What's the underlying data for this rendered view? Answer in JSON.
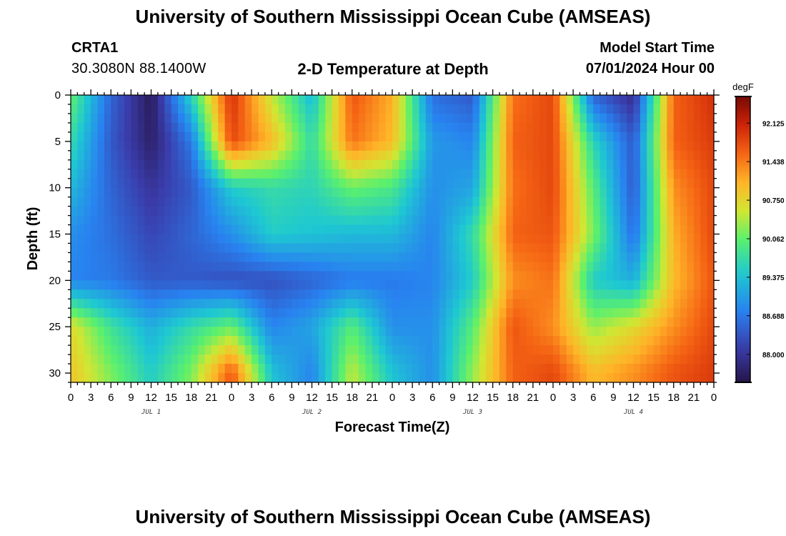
{
  "header": {
    "title_top": "University of Southern Mississippi Ocean Cube (AMSEAS)",
    "title_bottom": "University of Southern Mississippi Ocean Cube (AMSEAS)",
    "station_id": "CRTA1",
    "station_coords": "30.3080N  88.1400W",
    "plot_title": "2-D Temperature at Depth",
    "model_start_label": "Model Start Time",
    "model_start_value": "07/01/2024 Hour 00"
  },
  "chart_data": {
    "type": "heatmap",
    "title": "2-D Temperature at Depth",
    "xlabel": "Forecast Time(Z)",
    "ylabel": "Depth (ft)",
    "x_range_hours": [
      0,
      96
    ],
    "y_range_ft": [
      0,
      31
    ],
    "y_inverted": true,
    "x_tick_labels": [
      "0",
      "3",
      "6",
      "9",
      "12",
      "15",
      "18",
      "21",
      "0",
      "3",
      "6",
      "9",
      "12",
      "15",
      "18",
      "21",
      "0",
      "3",
      "6",
      "9",
      "12",
      "15",
      "18",
      "21",
      "0",
      "3",
      "6",
      "9",
      "12",
      "15",
      "18",
      "21",
      "0"
    ],
    "y_ticks": [
      0,
      5,
      10,
      15,
      20,
      25,
      30
    ],
    "day_labels": [
      {
        "text": "JUL 1",
        "hour": 12
      },
      {
        "text": "JUL 2",
        "hour": 36
      },
      {
        "text": "JUL 3",
        "hour": 60
      },
      {
        "text": "JUL 4",
        "hour": 84
      }
    ],
    "colorbar": {
      "unit": "degF",
      "range": [
        87.5,
        92.6
      ],
      "ticks": [
        "92.125",
        "91.438",
        "90.750",
        "90.062",
        "89.375",
        "88.688",
        "88.000"
      ],
      "colormap": "jet-like (dark blue to dark red)"
    },
    "depths_ft": [
      0,
      5,
      10,
      15,
      20,
      25,
      30
    ],
    "hours": [
      0,
      6,
      12,
      18,
      24,
      30,
      36,
      42,
      48,
      54,
      60,
      66,
      72,
      78,
      84,
      90,
      96
    ],
    "temperature_degF": [
      [
        90.1,
        88.5,
        87.6,
        89.6,
        92.0,
        90.5,
        89.3,
        91.7,
        91.1,
        88.6,
        88.4,
        91.5,
        91.8,
        88.5,
        87.9,
        91.6,
        92.0
      ],
      [
        89.7,
        88.4,
        87.7,
        88.7,
        91.8,
        91.0,
        89.7,
        91.5,
        91.0,
        89.0,
        88.8,
        91.6,
        91.8,
        89.6,
        88.4,
        91.6,
        91.9
      ],
      [
        89.3,
        88.5,
        88.0,
        88.4,
        89.5,
        89.7,
        89.6,
        90.1,
        89.9,
        88.9,
        89.1,
        91.5,
        91.8,
        90.0,
        88.4,
        91.3,
        91.8
      ],
      [
        88.9,
        88.6,
        88.2,
        88.5,
        88.9,
        89.5,
        89.4,
        89.3,
        89.3,
        88.8,
        89.7,
        91.6,
        91.7,
        90.2,
        88.6,
        91.1,
        91.8
      ],
      [
        88.8,
        88.7,
        88.4,
        88.4,
        88.3,
        88.3,
        88.5,
        88.7,
        88.7,
        88.8,
        89.5,
        91.3,
        91.5,
        89.5,
        89.2,
        91.0,
        91.7
      ],
      [
        90.7,
        89.8,
        89.2,
        89.7,
        90.1,
        88.8,
        89.1,
        90.0,
        88.9,
        88.9,
        90.0,
        91.7,
        91.3,
        90.3,
        90.7,
        91.3,
        91.8
      ],
      [
        90.9,
        90.2,
        89.5,
        90.2,
        91.7,
        89.4,
        88.8,
        90.5,
        89.4,
        88.9,
        90.3,
        91.6,
        91.8,
        91.0,
        91.3,
        91.7,
        91.9
      ]
    ]
  }
}
